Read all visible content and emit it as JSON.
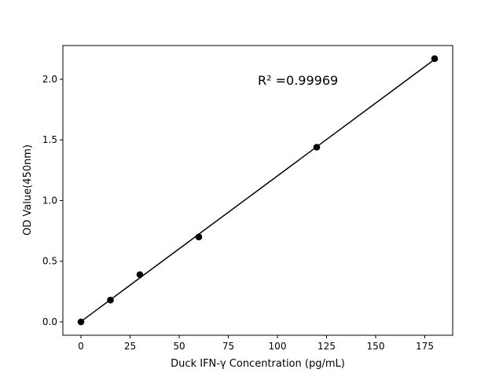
{
  "chart_data": {
    "type": "scatter",
    "title": "",
    "xlabel": "Duck IFN-γ Concentration (pg/mL)",
    "ylabel": "OD Value(450nm)",
    "xlim": [
      -9.2,
      189.2
    ],
    "ylim": [
      -0.11,
      2.278
    ],
    "xticks": [
      0,
      25,
      50,
      75,
      100,
      125,
      150,
      175
    ],
    "yticks": [
      0.0,
      0.5,
      1.0,
      1.5,
      2.0
    ],
    "ytick_labels": [
      "0.0",
      "0.5",
      "1.0",
      "1.5",
      "2.0"
    ],
    "grid": false,
    "series": [
      {
        "x": [
          0,
          15,
          30,
          60,
          120,
          180
        ],
        "y": [
          0.0,
          0.18,
          0.39,
          0.7,
          1.44,
          2.17
        ],
        "color": "#000000",
        "marker": "circle",
        "fit_line": "linear"
      }
    ],
    "annotation": "R² =0.99969"
  }
}
